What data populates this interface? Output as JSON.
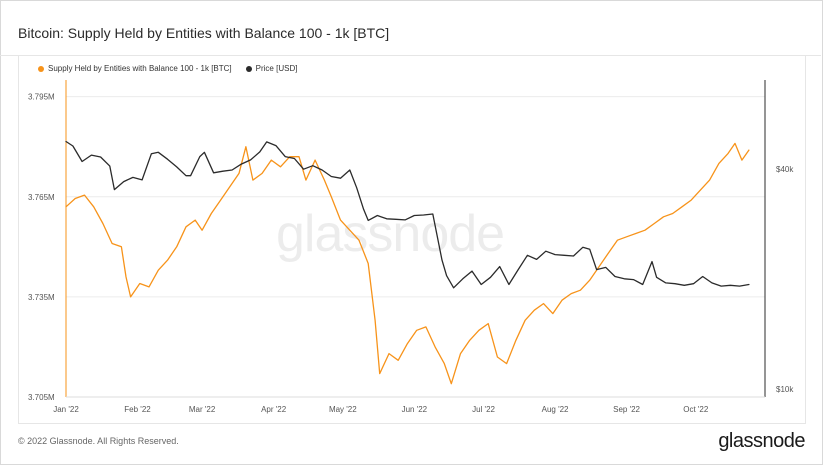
{
  "header": {
    "title": "Bitcoin: Supply Held by Entities with Balance 100 - 1k [BTC]"
  },
  "footer": {
    "copyright": "© 2022 Glassnode. All Rights Reserved.",
    "logo": "glassnode"
  },
  "watermark": "glassnode",
  "colors": {
    "supply": "#f7931a",
    "price": "#2b2b2b"
  },
  "chart_data": {
    "type": "line",
    "title": "Bitcoin: Supply Held by Entities with Balance 100 - 1k [BTC]",
    "legend": {
      "placement": "top-left"
    },
    "grid": true,
    "x_ticks": [
      "Jan '22",
      "Feb '22",
      "Mar '22",
      "Apr '22",
      "May '22",
      "Jun '22",
      "Jul '22",
      "Aug '22",
      "Sep '22",
      "Oct '22"
    ],
    "x_tick_dates": [
      "2022-01-01",
      "2022-02-01",
      "2022-03-01",
      "2022-04-01",
      "2022-05-01",
      "2022-06-01",
      "2022-07-01",
      "2022-08-01",
      "2022-09-01",
      "2022-10-01"
    ],
    "x_range": [
      "2022-01-01",
      "2022-10-31"
    ],
    "y_left": {
      "ticks": [
        "3.705M",
        "3.735M",
        "3.765M",
        "3.795M"
      ],
      "tick_values": [
        3705000,
        3735000,
        3765000,
        3795000
      ],
      "range": [
        3705000,
        3800000
      ]
    },
    "y_right": {
      "scale": "log",
      "ticks": [
        "$10k",
        "$40k"
      ],
      "tick_values": [
        10000,
        40000
      ],
      "range": [
        9500,
        70000
      ]
    },
    "series": [
      {
        "name": "Supply Held by Entities with Balance 100 - 1k [BTC]",
        "axis": "left",
        "color": "#f7931a",
        "points": [
          [
            "2022-01-01",
            3762000
          ],
          [
            "2022-01-05",
            3764500
          ],
          [
            "2022-01-09",
            3765500
          ],
          [
            "2022-01-13",
            3762000
          ],
          [
            "2022-01-17",
            3757000
          ],
          [
            "2022-01-21",
            3751000
          ],
          [
            "2022-01-25",
            3750000
          ],
          [
            "2022-01-27",
            3741000
          ],
          [
            "2022-01-29",
            3735000
          ],
          [
            "2022-02-02",
            3739000
          ],
          [
            "2022-02-06",
            3738000
          ],
          [
            "2022-02-10",
            3743000
          ],
          [
            "2022-02-14",
            3746000
          ],
          [
            "2022-02-18",
            3750000
          ],
          [
            "2022-02-22",
            3756000
          ],
          [
            "2022-02-26",
            3758000
          ],
          [
            "2022-03-01",
            3755000
          ],
          [
            "2022-03-05",
            3760000
          ],
          [
            "2022-03-09",
            3764000
          ],
          [
            "2022-03-13",
            3768000
          ],
          [
            "2022-03-17",
            3772000
          ],
          [
            "2022-03-20",
            3780000
          ],
          [
            "2022-03-23",
            3770000
          ],
          [
            "2022-03-27",
            3772000
          ],
          [
            "2022-03-31",
            3776000
          ],
          [
            "2022-04-04",
            3774000
          ],
          [
            "2022-04-08",
            3777000
          ],
          [
            "2022-04-12",
            3777000
          ],
          [
            "2022-04-15",
            3770000
          ],
          [
            "2022-04-19",
            3776000
          ],
          [
            "2022-04-23",
            3770000
          ],
          [
            "2022-04-26",
            3765000
          ],
          [
            "2022-04-30",
            3758000
          ],
          [
            "2022-05-04",
            3755000
          ],
          [
            "2022-05-08",
            3752000
          ],
          [
            "2022-05-12",
            3745000
          ],
          [
            "2022-05-15",
            3728000
          ],
          [
            "2022-05-17",
            3712000
          ],
          [
            "2022-05-21",
            3718000
          ],
          [
            "2022-05-25",
            3716000
          ],
          [
            "2022-05-29",
            3721000
          ],
          [
            "2022-06-02",
            3725000
          ],
          [
            "2022-06-06",
            3726000
          ],
          [
            "2022-06-10",
            3720000
          ],
          [
            "2022-06-14",
            3715000
          ],
          [
            "2022-06-17",
            3709000
          ],
          [
            "2022-06-21",
            3718000
          ],
          [
            "2022-06-25",
            3722000
          ],
          [
            "2022-06-29",
            3725000
          ],
          [
            "2022-07-03",
            3727000
          ],
          [
            "2022-07-07",
            3717000
          ],
          [
            "2022-07-11",
            3715000
          ],
          [
            "2022-07-15",
            3722000
          ],
          [
            "2022-07-19",
            3728000
          ],
          [
            "2022-07-23",
            3731000
          ],
          [
            "2022-07-27",
            3733000
          ],
          [
            "2022-07-31",
            3730000
          ],
          [
            "2022-08-04",
            3734000
          ],
          [
            "2022-08-08",
            3736000
          ],
          [
            "2022-08-12",
            3737000
          ],
          [
            "2022-08-16",
            3740000
          ],
          [
            "2022-08-20",
            3744000
          ],
          [
            "2022-08-24",
            3748000
          ],
          [
            "2022-08-28",
            3752000
          ],
          [
            "2022-09-01",
            3753000
          ],
          [
            "2022-09-05",
            3754000
          ],
          [
            "2022-09-09",
            3755000
          ],
          [
            "2022-09-13",
            3757000
          ],
          [
            "2022-09-17",
            3759000
          ],
          [
            "2022-09-21",
            3760000
          ],
          [
            "2022-09-25",
            3762000
          ],
          [
            "2022-09-29",
            3764000
          ],
          [
            "2022-10-03",
            3767000
          ],
          [
            "2022-10-07",
            3770000
          ],
          [
            "2022-10-11",
            3775000
          ],
          [
            "2022-10-15",
            3778000
          ],
          [
            "2022-10-18",
            3781000
          ],
          [
            "2022-10-21",
            3776000
          ],
          [
            "2022-10-24",
            3779000
          ]
        ]
      },
      {
        "name": "Price [USD]",
        "axis": "right",
        "color": "#2b2b2b",
        "points": [
          [
            "2022-01-01",
            47500
          ],
          [
            "2022-01-04",
            46200
          ],
          [
            "2022-01-08",
            41900
          ],
          [
            "2022-01-12",
            43600
          ],
          [
            "2022-01-16",
            43100
          ],
          [
            "2022-01-20",
            40700
          ],
          [
            "2022-01-22",
            35100
          ],
          [
            "2022-01-26",
            36900
          ],
          [
            "2022-01-30",
            37900
          ],
          [
            "2022-02-03",
            37300
          ],
          [
            "2022-02-07",
            44000
          ],
          [
            "2022-02-10",
            44400
          ],
          [
            "2022-02-14",
            42500
          ],
          [
            "2022-02-18",
            40500
          ],
          [
            "2022-02-22",
            38300
          ],
          [
            "2022-02-24",
            38300
          ],
          [
            "2022-02-28",
            43200
          ],
          [
            "2022-03-02",
            44400
          ],
          [
            "2022-03-06",
            39000
          ],
          [
            "2022-03-10",
            39400
          ],
          [
            "2022-03-14",
            39700
          ],
          [
            "2022-03-18",
            41200
          ],
          [
            "2022-03-22",
            42300
          ],
          [
            "2022-03-26",
            44500
          ],
          [
            "2022-03-29",
            47400
          ],
          [
            "2022-04-02",
            46300
          ],
          [
            "2022-04-06",
            43200
          ],
          [
            "2022-04-10",
            42700
          ],
          [
            "2022-04-14",
            39900
          ],
          [
            "2022-04-18",
            40800
          ],
          [
            "2022-04-22",
            39700
          ],
          [
            "2022-04-26",
            38100
          ],
          [
            "2022-04-30",
            37700
          ],
          [
            "2022-05-04",
            39700
          ],
          [
            "2022-05-07",
            35500
          ],
          [
            "2022-05-10",
            31000
          ],
          [
            "2022-05-12",
            28900
          ],
          [
            "2022-05-16",
            29800
          ],
          [
            "2022-05-20",
            29200
          ],
          [
            "2022-05-24",
            29100
          ],
          [
            "2022-05-28",
            29000
          ],
          [
            "2022-06-01",
            29800
          ],
          [
            "2022-06-05",
            29900
          ],
          [
            "2022-06-09",
            30100
          ],
          [
            "2022-06-13",
            22500
          ],
          [
            "2022-06-15",
            20400
          ],
          [
            "2022-06-18",
            18900
          ],
          [
            "2022-06-22",
            20000
          ],
          [
            "2022-06-26",
            21000
          ],
          [
            "2022-06-30",
            19300
          ],
          [
            "2022-07-04",
            20200
          ],
          [
            "2022-07-08",
            21600
          ],
          [
            "2022-07-12",
            19300
          ],
          [
            "2022-07-16",
            21200
          ],
          [
            "2022-07-20",
            23200
          ],
          [
            "2022-07-24",
            22600
          ],
          [
            "2022-07-28",
            23800
          ],
          [
            "2022-08-01",
            23300
          ],
          [
            "2022-08-05",
            23200
          ],
          [
            "2022-08-09",
            23100
          ],
          [
            "2022-08-13",
            24400
          ],
          [
            "2022-08-16",
            24100
          ],
          [
            "2022-08-19",
            21200
          ],
          [
            "2022-08-23",
            21500
          ],
          [
            "2022-08-27",
            20300
          ],
          [
            "2022-08-31",
            20000
          ],
          [
            "2022-09-04",
            19900
          ],
          [
            "2022-09-08",
            19300
          ],
          [
            "2022-09-12",
            22300
          ],
          [
            "2022-09-14",
            20200
          ],
          [
            "2022-09-18",
            19500
          ],
          [
            "2022-09-22",
            19400
          ],
          [
            "2022-09-26",
            19200
          ],
          [
            "2022-09-30",
            19400
          ],
          [
            "2022-10-04",
            20300
          ],
          [
            "2022-10-08",
            19500
          ],
          [
            "2022-10-12",
            19100
          ],
          [
            "2022-10-16",
            19200
          ],
          [
            "2022-10-20",
            19100
          ],
          [
            "2022-10-24",
            19300
          ]
        ]
      }
    ]
  }
}
